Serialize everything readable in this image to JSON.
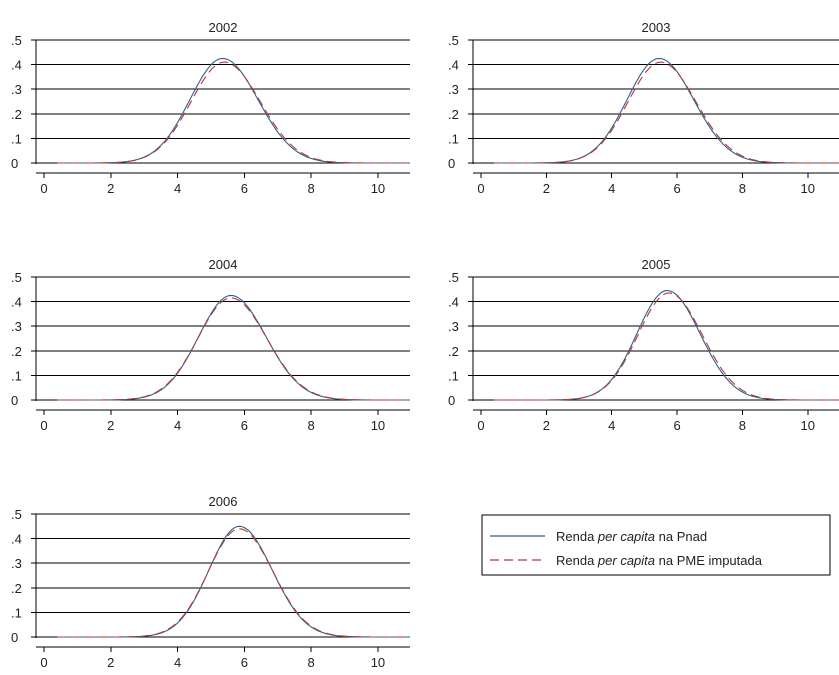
{
  "colors": {
    "series_solid": "#2f5f8a",
    "series_dashed": "#b23a3a",
    "grid": "#000000"
  },
  "chart_data": [
    {
      "type": "line",
      "title": "2002",
      "xlim": [
        0,
        11.2
      ],
      "ylim": [
        0,
        0.5
      ],
      "xticks": [
        0,
        2,
        4,
        6,
        8,
        10
      ],
      "xtick_labels": [
        "0",
        "2",
        "4",
        "6",
        "8",
        "10"
      ],
      "yticks": [
        0,
        0.1,
        0.2,
        0.3,
        0.4,
        0.5
      ],
      "ytick_labels": [
        "0",
        ".1",
        ".2",
        ".3",
        ".4",
        ".5"
      ],
      "grid": true,
      "series": [
        {
          "style": "solid",
          "peak_x": 5.35,
          "peak_y": 0.425,
          "spread": 0.98
        },
        {
          "style": "dashed",
          "peak_x": 5.4,
          "peak_y": 0.41,
          "spread": 1.0
        }
      ]
    },
    {
      "type": "line",
      "title": "2003",
      "xlim": [
        0,
        11.2
      ],
      "ylim": [
        0,
        0.5
      ],
      "xticks": [
        0,
        2,
        4,
        6,
        8,
        10
      ],
      "xtick_labels": [
        "0",
        "2",
        "4",
        "6",
        "8",
        "10"
      ],
      "yticks": [
        0,
        0.1,
        0.2,
        0.3,
        0.4,
        0.5
      ],
      "ytick_labels": [
        "0",
        ".1",
        ".2",
        ".3",
        ".4",
        ".5"
      ],
      "grid": true,
      "series": [
        {
          "style": "solid",
          "peak_x": 5.45,
          "peak_y": 0.425,
          "spread": 0.98
        },
        {
          "style": "dashed",
          "peak_x": 5.5,
          "peak_y": 0.41,
          "spread": 1.0
        }
      ]
    },
    {
      "type": "line",
      "title": "2004",
      "xlim": [
        0,
        11.2
      ],
      "ylim": [
        0,
        0.5
      ],
      "xticks": [
        0,
        2,
        4,
        6,
        8,
        10
      ],
      "xtick_labels": [
        "0",
        "2",
        "4",
        "6",
        "8",
        "10"
      ],
      "yticks": [
        0,
        0.1,
        0.2,
        0.3,
        0.4,
        0.5
      ],
      "ytick_labels": [
        "0",
        ".1",
        ".2",
        ".3",
        ".4",
        ".5"
      ],
      "grid": true,
      "series": [
        {
          "style": "solid",
          "peak_x": 5.6,
          "peak_y": 0.425,
          "spread": 0.97
        },
        {
          "style": "dashed",
          "peak_x": 5.6,
          "peak_y": 0.415,
          "spread": 0.99
        }
      ]
    },
    {
      "type": "line",
      "title": "2005",
      "xlim": [
        0,
        11.2
      ],
      "ylim": [
        0,
        0.5
      ],
      "xticks": [
        0,
        2,
        4,
        6,
        8,
        10
      ],
      "xtick_labels": [
        "0",
        "2",
        "4",
        "6",
        "8",
        "10"
      ],
      "yticks": [
        0,
        0.1,
        0.2,
        0.3,
        0.4,
        0.5
      ],
      "ytick_labels": [
        "0",
        ".1",
        ".2",
        ".3",
        ".4",
        ".5"
      ],
      "grid": true,
      "series": [
        {
          "style": "solid",
          "peak_x": 5.7,
          "peak_y": 0.445,
          "spread": 0.93
        },
        {
          "style": "dashed",
          "peak_x": 5.75,
          "peak_y": 0.435,
          "spread": 0.95
        }
      ]
    },
    {
      "type": "line",
      "title": "2006",
      "xlim": [
        0,
        11.2
      ],
      "ylim": [
        0,
        0.5
      ],
      "xticks": [
        0,
        2,
        4,
        6,
        8,
        10
      ],
      "xtick_labels": [
        "0",
        "2",
        "4",
        "6",
        "8",
        "10"
      ],
      "yticks": [
        0,
        0.1,
        0.2,
        0.3,
        0.4,
        0.5
      ],
      "ytick_labels": [
        "0",
        ".1",
        ".2",
        ".3",
        ".4",
        ".5"
      ],
      "grid": true,
      "series": [
        {
          "style": "solid",
          "peak_x": 5.85,
          "peak_y": 0.45,
          "spread": 0.91
        },
        {
          "style": "dashed",
          "peak_x": 5.85,
          "peak_y": 0.44,
          "spread": 0.93
        }
      ]
    }
  ],
  "legend": {
    "entries": [
      {
        "style": "solid",
        "prefix": "Renda ",
        "italic": "per capita",
        "suffix": " na Pnad"
      },
      {
        "style": "dashed",
        "prefix": "Renda ",
        "italic": "per capita",
        "suffix": " na PME imputada"
      }
    ]
  }
}
